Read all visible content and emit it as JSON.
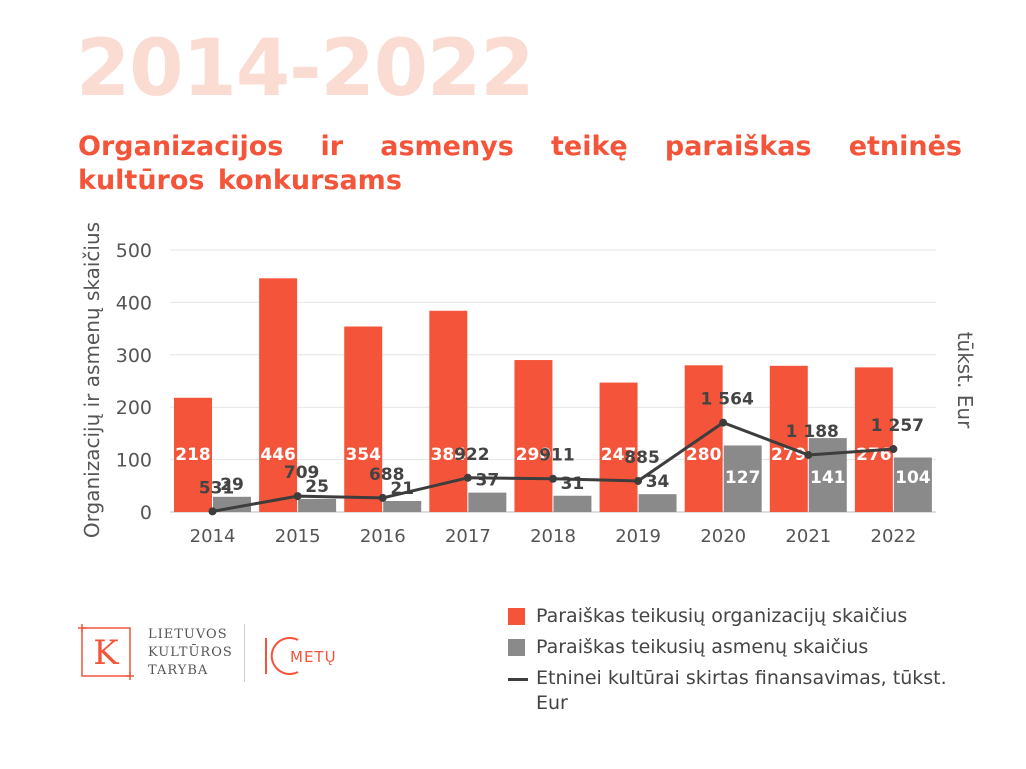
{
  "header": {
    "big_year": "2014-2022",
    "title": "Organizacijos ir asmenys teikę paraiškas etninės kultūros konkursams"
  },
  "chart_data": {
    "type": "bar",
    "title": "Organizacijos ir asmenys teikę paraiškas etninės kultūros konkursams",
    "ylabel": "Organizacijų ir asmenų skaičius",
    "y2label": "tūkst. Eur",
    "ylim": [
      0,
      500
    ],
    "yticks": [
      "0",
      "100",
      "200",
      "300",
      "400",
      "500"
    ],
    "grid": true,
    "legend_position": "bottom-right",
    "categories": [
      "2014",
      "2015",
      "2016",
      "2017",
      "2018",
      "2019",
      "2020",
      "2021",
      "2022"
    ],
    "series": [
      {
        "name": "Paraiškas teikusių organizacijų skaičius",
        "type": "bar",
        "color": "#f4553a",
        "values": [
          218,
          446,
          354,
          384,
          290,
          247,
          280,
          279,
          276
        ],
        "labels": [
          "218",
          "446",
          "354",
          "384",
          "290",
          "247",
          "280",
          "279",
          "276"
        ]
      },
      {
        "name": "Paraiškas teikusių asmenų skaičius",
        "type": "bar",
        "color": "#8a8a8a",
        "values": [
          29,
          25,
          21,
          37,
          31,
          34,
          127,
          141,
          104
        ],
        "labels": [
          "29",
          "25",
          "21",
          "37",
          "31",
          "34",
          "127",
          "141",
          "104"
        ]
      },
      {
        "name": "Etninei kultūrai skirtas finansavimas, tūkst. Eur",
        "type": "line",
        "axis": "secondary",
        "color": "#3d3d3d",
        "values": [
          531,
          709,
          688,
          922,
          911,
          885,
          1564,
          1188,
          1257
        ],
        "labels": [
          "531",
          "709",
          "688",
          "922",
          "911",
          "885",
          "1 564",
          "1 188",
          "1 257"
        ]
      }
    ]
  },
  "legend": {
    "org": "Paraiškas teikusių organizacijų skaičius",
    "persons": "Paraiškas teikusių asmenų skaičius",
    "funding": "Etninei kultūrai skirtas finansavimas, tūkst. Eur"
  },
  "logo": {
    "letter": "K",
    "line1": "LIETUVOS",
    "line2": "KULTŪROS",
    "line3": "TARYBA",
    "anniv_text": "METŲ",
    "colors": {
      "accent": "#f4553a",
      "text": "#555555"
    }
  }
}
